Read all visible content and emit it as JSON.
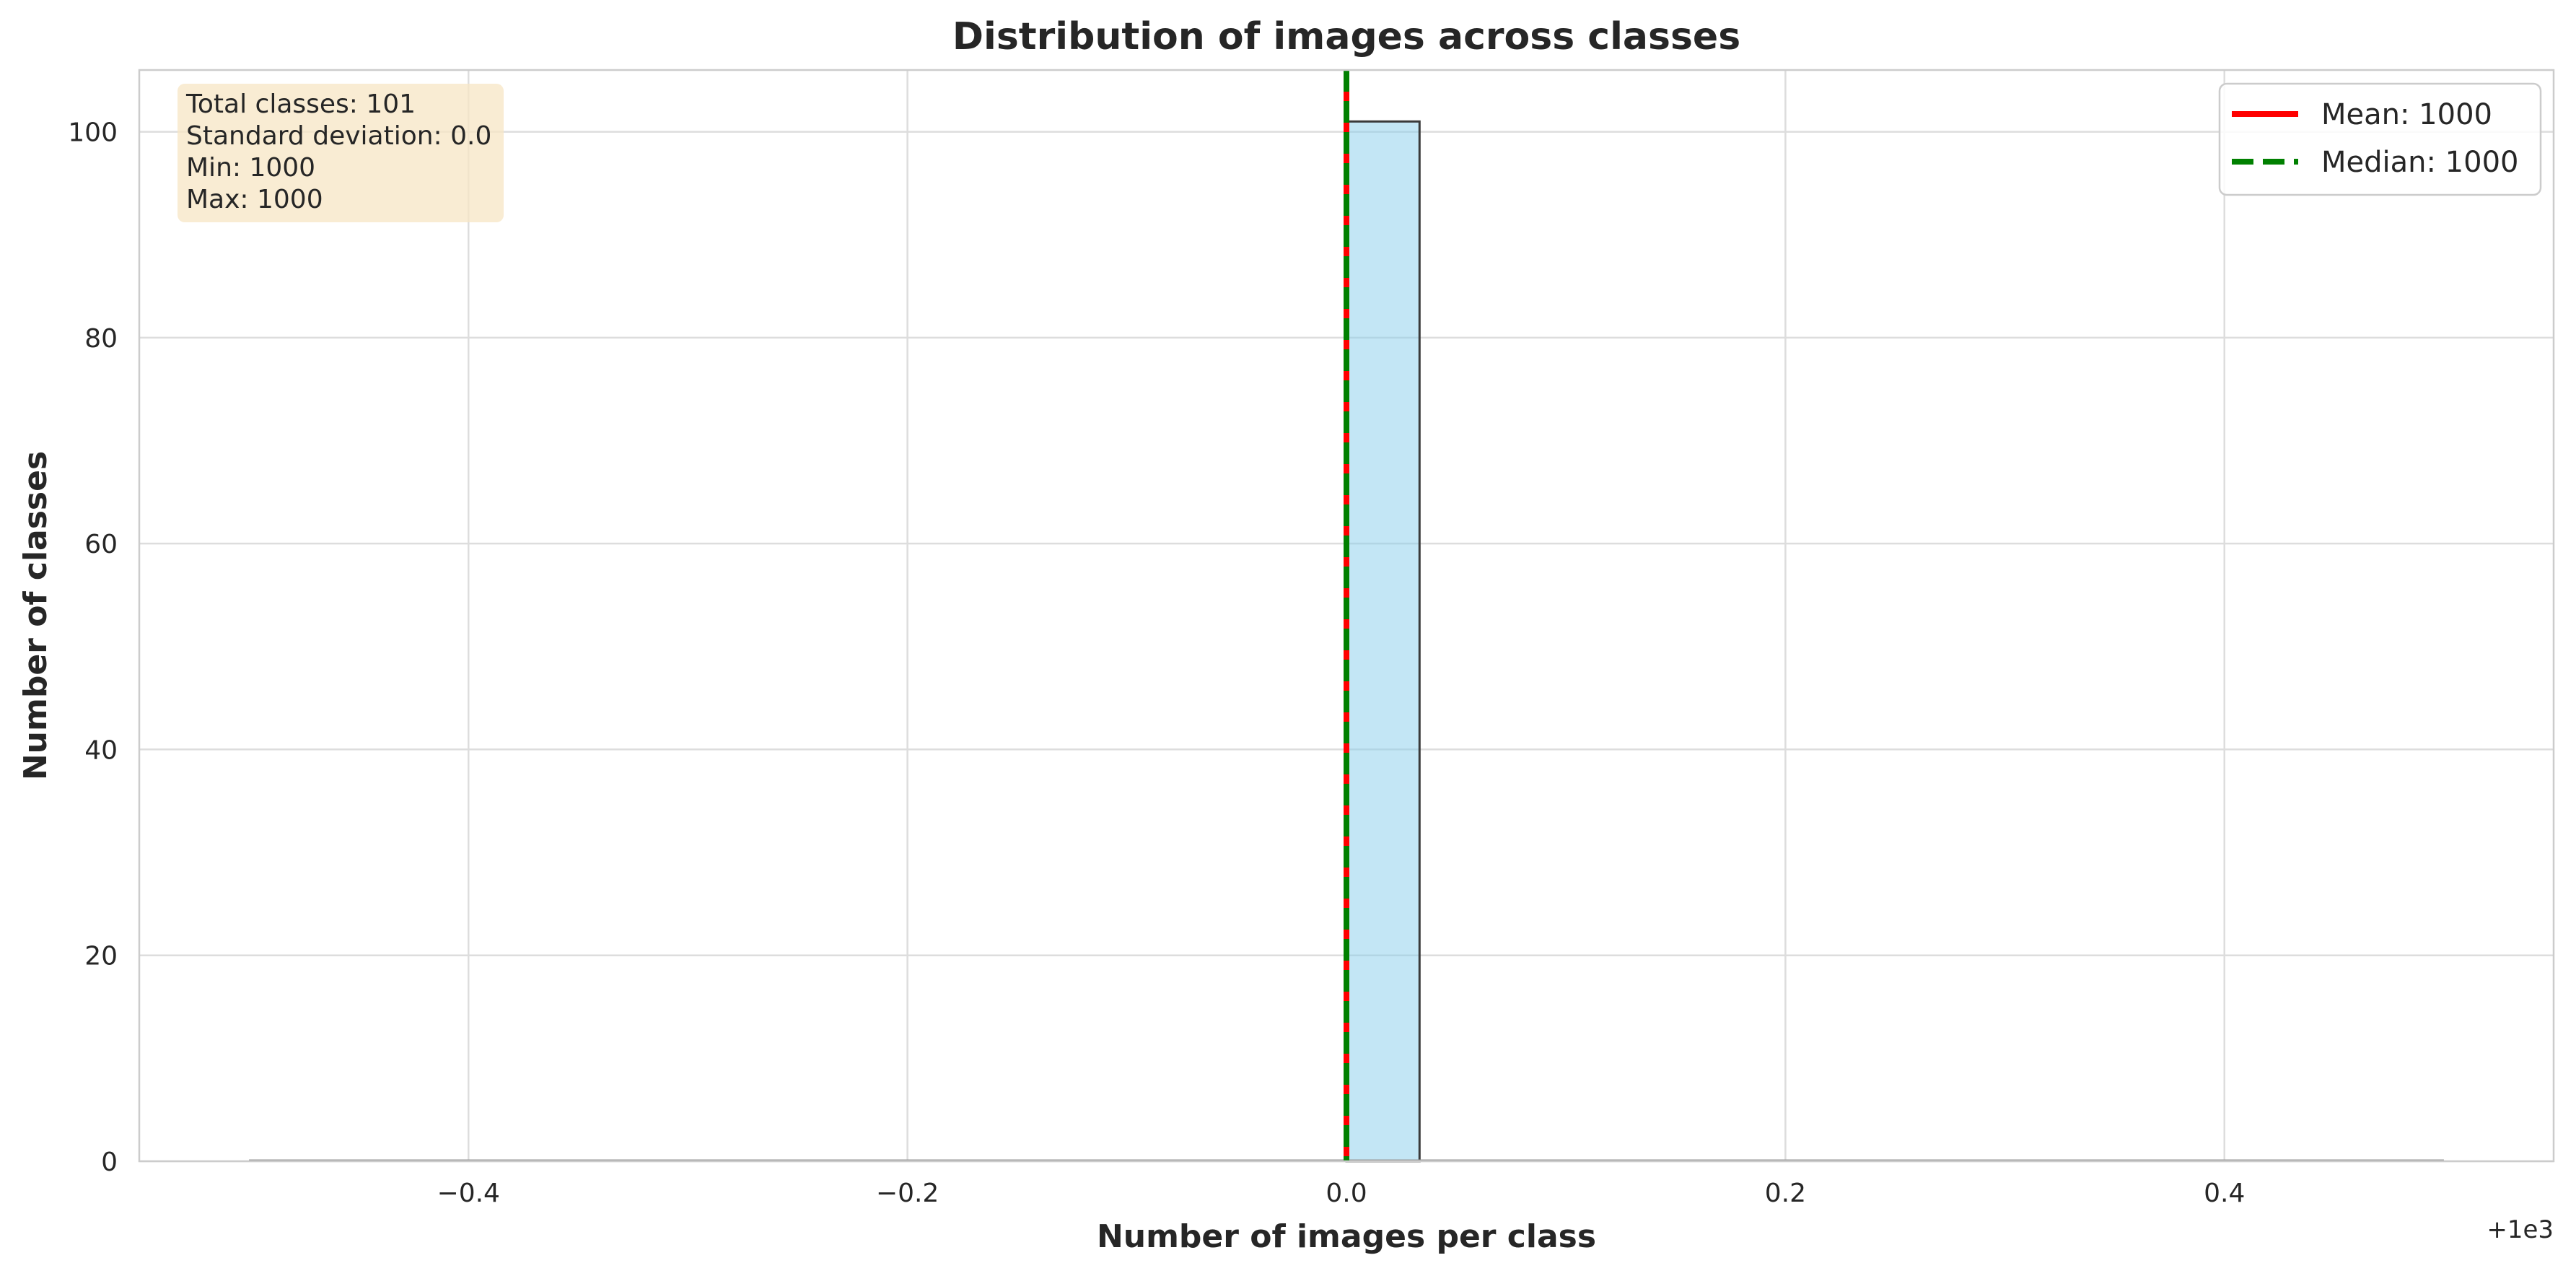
{
  "chart_data": {
    "type": "bar",
    "title": "Distribution of images across classes",
    "xlabel": "Number of images per class",
    "ylabel": "Number of classes",
    "x_offset_label": "+1e3",
    "xlim": [
      -0.55,
      0.55
    ],
    "ylim": [
      0,
      106
    ],
    "x_ticks": [
      -0.4,
      -0.2,
      0.0,
      0.2,
      0.4
    ],
    "x_tick_labels": [
      "−0.4",
      "−0.2",
      "0.0",
      "0.2",
      "0.4"
    ],
    "y_ticks": [
      0,
      20,
      40,
      60,
      80,
      100
    ],
    "y_tick_labels": [
      "0",
      "20",
      "40",
      "60",
      "80",
      "100"
    ],
    "grid": true,
    "bars": [
      {
        "x0": 0.0,
        "x1": 0.0333,
        "value": 101
      }
    ],
    "baseline": {
      "x0": -0.5,
      "x1": 0.5,
      "value": 0
    },
    "reference_lines": [
      {
        "name": "Mean: 1000",
        "x": 0.0,
        "color": "#ff0000",
        "style": "solid"
      },
      {
        "name": "Median: 1000",
        "x": 0.0,
        "color": "#008000",
        "style": "dashed"
      }
    ],
    "legend": {
      "position": "top-right",
      "entries": [
        "Mean: 1000",
        "Median: 1000"
      ]
    },
    "stats_box": {
      "position": "top-left",
      "lines": [
        "Total classes: 101",
        "Standard deviation: 0.0",
        "Min: 1000",
        "Max: 1000"
      ]
    },
    "colors": {
      "bar_fill": "#87ceeb",
      "bar_edge": "#3a3a3a",
      "grid": "#dddddd",
      "stats_box_bg": "#f7e6c4"
    }
  }
}
